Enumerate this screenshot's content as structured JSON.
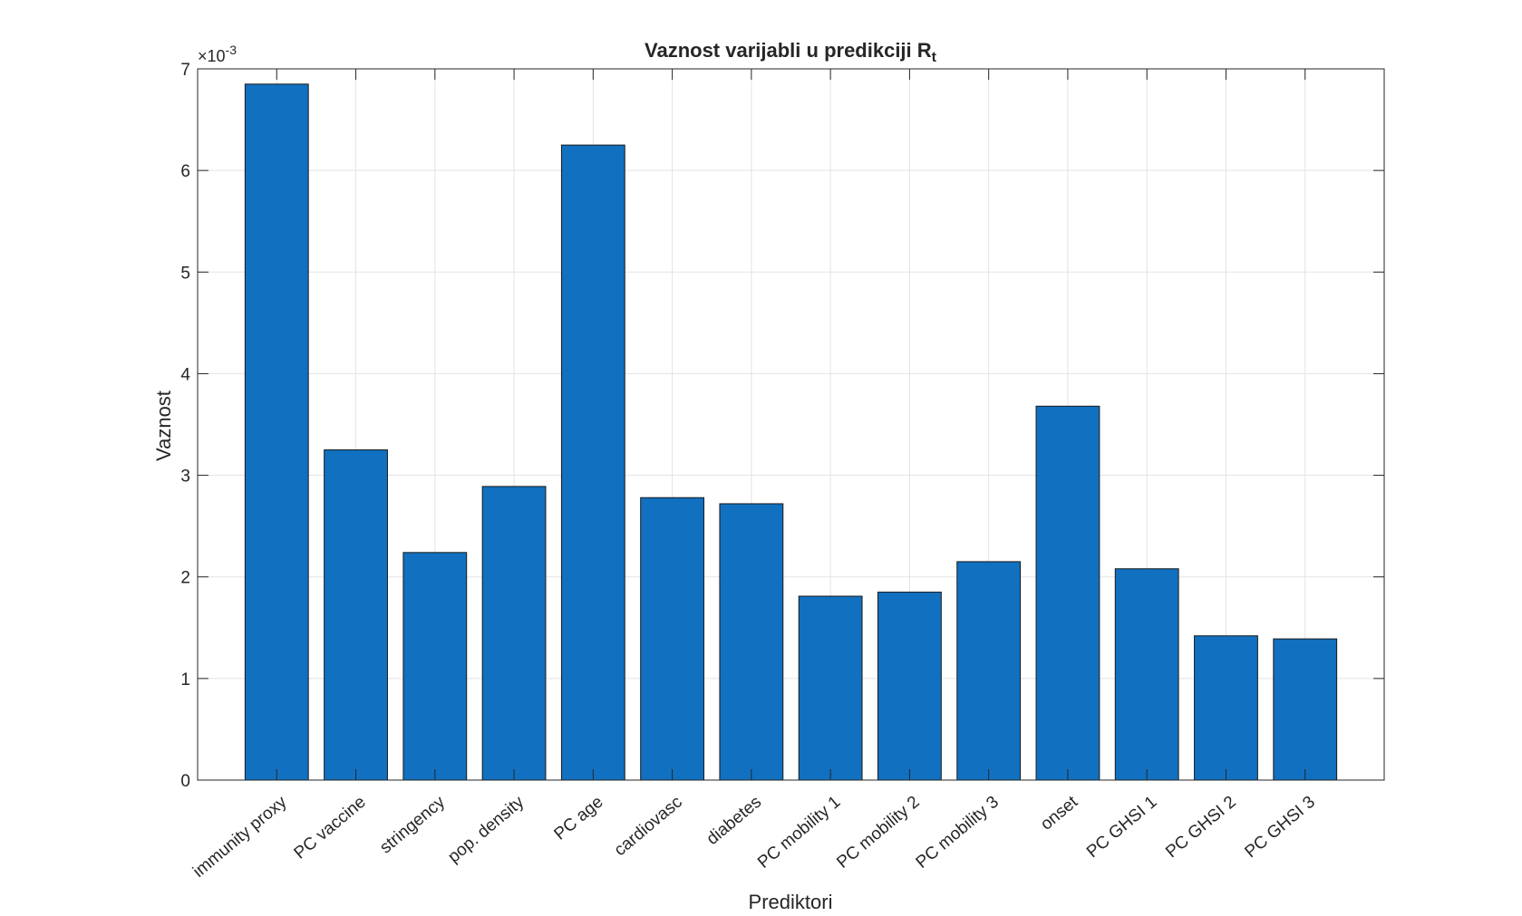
{
  "chart_data": {
    "type": "bar",
    "title": "Vaznost  varijabli  u  predikciji  R",
    "title_subscript": "t",
    "xlabel": "Prediktori",
    "ylabel": "Vaznost",
    "y_exponent_base": "×10",
    "y_exponent_power": "-3",
    "ylim": [
      0,
      7
    ],
    "yticks": [
      "0",
      "1",
      "2",
      "3",
      "4",
      "5",
      "6",
      "7"
    ],
    "grid": true,
    "bar_color": "#1170BF",
    "categories": [
      "immunity proxy",
      "PC vaccine",
      "stringency",
      "pop. density",
      "PC age",
      "cardiovasc",
      "diabetes",
      "PC mobility 1",
      "PC mobility 2",
      "PC mobility 3",
      "onset",
      "PC GHSI 1",
      "PC GHSI 2",
      "PC GHSI 3"
    ],
    "values": [
      6.85,
      3.25,
      2.24,
      2.89,
      6.25,
      2.78,
      2.72,
      1.81,
      1.85,
      2.15,
      3.68,
      2.08,
      1.42,
      1.39
    ]
  }
}
